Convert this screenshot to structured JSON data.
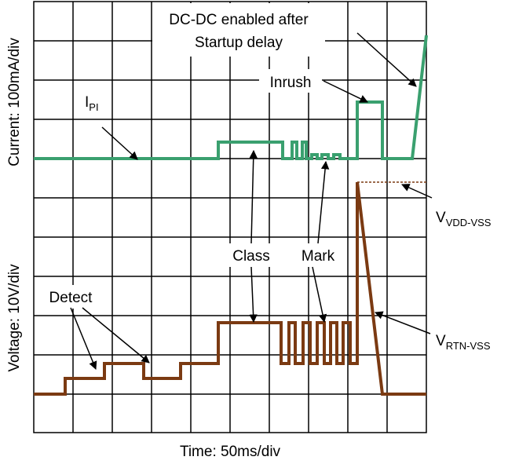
{
  "title": {
    "line1": "DC-DC enabled after",
    "line2": "Startup delay"
  },
  "labels": {
    "inrush": "Inrush",
    "ipi_main": "I",
    "ipi_sub": "PI",
    "class": "Class",
    "mark": "Mark",
    "detect": "Detect",
    "vdd_main": "V",
    "vdd_sub": "VDD-VSS",
    "vrtn_main": "V",
    "vrtn_sub": "RTN-VSS"
  },
  "axes": {
    "current": "Current: 100mA/div",
    "voltage": "Voltage: 10V/div",
    "time": "Time: 50ms/div"
  }
}
